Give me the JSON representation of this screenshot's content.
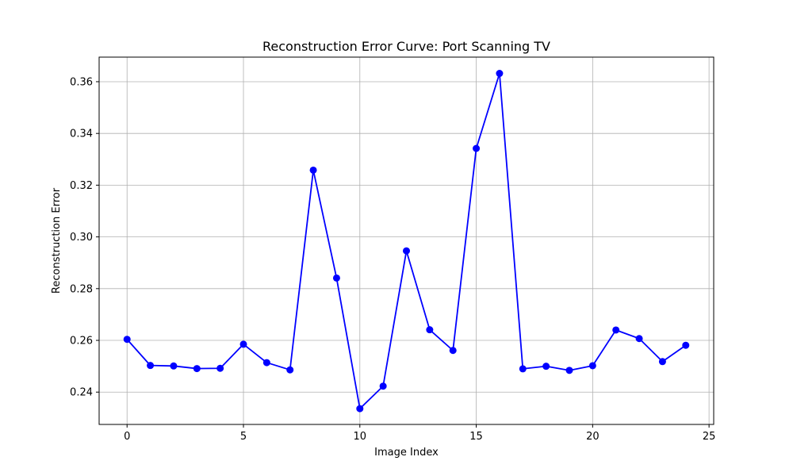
{
  "chart_data": {
    "type": "line",
    "title": "Reconstruction Error Curve: Port Scanning TV",
    "xlabel": "Image Index",
    "ylabel": "Reconstruction Error",
    "xlim": [
      -1.2,
      25.2
    ],
    "ylim": [
      0.2275,
      0.3695
    ],
    "xticks": [
      0,
      5,
      10,
      15,
      20,
      25
    ],
    "yticks": [
      0.24,
      0.26,
      0.28,
      0.3,
      0.32,
      0.34,
      0.36
    ],
    "ytick_labels": [
      "0.24",
      "0.26",
      "0.28",
      "0.30",
      "0.32",
      "0.34",
      "0.36"
    ],
    "grid": true,
    "color": "#0000ff",
    "marker": "circle",
    "series": [
      {
        "x": [
          0,
          1,
          2,
          3,
          4,
          5,
          6,
          7,
          8,
          9,
          10,
          11,
          12,
          13,
          14,
          15,
          16,
          17,
          18,
          19,
          20,
          21,
          22,
          23,
          24
        ],
        "values": [
          0.2604,
          0.2503,
          0.2501,
          0.2491,
          0.2492,
          0.2585,
          0.2514,
          0.2486,
          0.3258,
          0.2841,
          0.2336,
          0.2423,
          0.2946,
          0.2641,
          0.2561,
          0.3342,
          0.3632,
          0.249,
          0.25,
          0.2484,
          0.2502,
          0.264,
          0.2607,
          0.2518,
          0.2581
        ]
      }
    ]
  }
}
